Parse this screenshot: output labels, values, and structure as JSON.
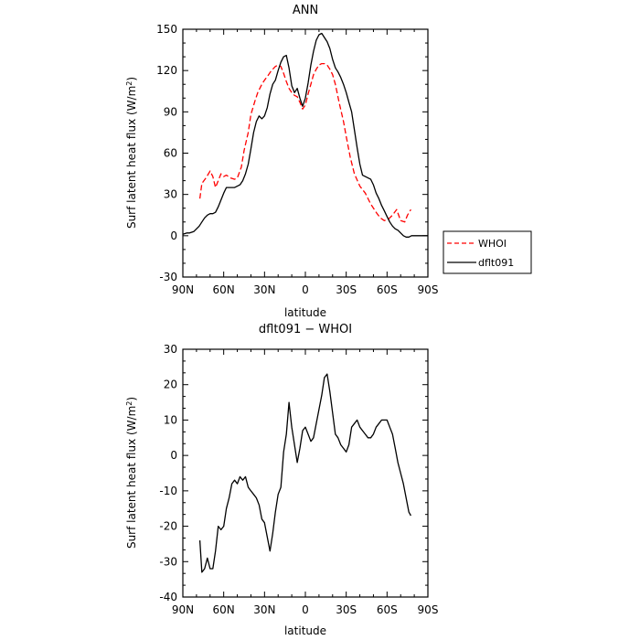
{
  "chart_data": [
    {
      "type": "line",
      "title": "ANN",
      "xlabel": "latitude",
      "ylabel_main": "Surf latent heat flux (W/m",
      "ylabel_sup": "2",
      "ylabel_close": ")",
      "xlim": [
        90,
        -90
      ],
      "ylim": [
        -30,
        150
      ],
      "xticks": [
        90,
        60,
        30,
        0,
        -30,
        -60,
        -90
      ],
      "xtick_labels": [
        "90N",
        "60N",
        "30N",
        "0",
        "30S",
        "60S",
        "90S"
      ],
      "yticks": [
        -30,
        0,
        30,
        60,
        90,
        120,
        150
      ],
      "ytick_labels": [
        "-30",
        "0",
        "30",
        "60",
        "90",
        "120",
        "150"
      ],
      "legend_placement": "right",
      "series": [
        {
          "name": "WHOI",
          "color": "#ff0000",
          "dash": true,
          "x": [
            77.5,
            76,
            73,
            70,
            68,
            66,
            64,
            62,
            60,
            58,
            55,
            52,
            50,
            47,
            45,
            42,
            40,
            37,
            35,
            32,
            30,
            27,
            25,
            22,
            20,
            18,
            16,
            14,
            12,
            10,
            8,
            6,
            4,
            2,
            0,
            -2,
            -4,
            -6,
            -8,
            -10,
            -12,
            -14,
            -16,
            -18,
            -20,
            -22,
            -25,
            -28,
            -30,
            -33,
            -36,
            -40,
            -44,
            -48,
            -52,
            -55,
            -58,
            -61,
            -64,
            -67,
            -70,
            -73,
            -75,
            -77.5
          ],
          "y": [
            27,
            38,
            42,
            47,
            43,
            35,
            40,
            45,
            43,
            44,
            42,
            41,
            42,
            50,
            62,
            75,
            88,
            98,
            104,
            110,
            113,
            117,
            120,
            123,
            124,
            123,
            118,
            112,
            107,
            104,
            102,
            101,
            97,
            92,
            95,
            103,
            110,
            117,
            121,
            124,
            125,
            125,
            124,
            121,
            117,
            110,
            96,
            83,
            72,
            57,
            45,
            36,
            31,
            23,
            17,
            13,
            11,
            12,
            15,
            19,
            11,
            10,
            15,
            19
          ]
        },
        {
          "name": "dflt091",
          "color": "#000000",
          "dash": false,
          "x": [
            90,
            87,
            85,
            82,
            80,
            78,
            76,
            74,
            72,
            70,
            68,
            66,
            64,
            62,
            60,
            58,
            56,
            54,
            52,
            50,
            48,
            46,
            44,
            42,
            40,
            38,
            36,
            34,
            32,
            30,
            28,
            26,
            24,
            22,
            20,
            18,
            16,
            14,
            12,
            10,
            8,
            6,
            4,
            2,
            0,
            -2,
            -4,
            -6,
            -8,
            -10,
            -12,
            -14,
            -16,
            -18,
            -20,
            -22,
            -24,
            -26,
            -28,
            -30,
            -32,
            -34,
            -36,
            -38,
            -40,
            -42,
            -44,
            -46,
            -48,
            -50,
            -52,
            -54,
            -56,
            -58,
            -60,
            -62,
            -64,
            -66,
            -68,
            -70,
            -72,
            -74,
            -76,
            -78,
            -80,
            -82,
            -84,
            -86,
            -88,
            -90
          ],
          "y": [
            1,
            2,
            2,
            3,
            5,
            7,
            10,
            13,
            15,
            16,
            16,
            17,
            21,
            26,
            31,
            35,
            35,
            35,
            35,
            36,
            37,
            40,
            45,
            52,
            63,
            75,
            83,
            87,
            85,
            87,
            93,
            103,
            110,
            113,
            120,
            126,
            130,
            131,
            122,
            109,
            104,
            107,
            100,
            94,
            100,
            111,
            124,
            134,
            142,
            146,
            147,
            144,
            141,
            136,
            128,
            122,
            119,
            115,
            110,
            104,
            97,
            90,
            77,
            64,
            52,
            44,
            43,
            42,
            41,
            37,
            31,
            27,
            22,
            18,
            14,
            10,
            7,
            5,
            4,
            2,
            0,
            -1,
            -1,
            0,
            0,
            0,
            0,
            0,
            0,
            0
          ]
        }
      ]
    },
    {
      "type": "line",
      "title": "dflt091 − WHOI",
      "xlabel": "latitude",
      "ylabel_main": "Surf latent heat flux (W/m",
      "ylabel_sup": "2",
      "ylabel_close": ")",
      "xlim": [
        90,
        -90
      ],
      "ylim": [
        -40,
        30
      ],
      "xticks": [
        90,
        60,
        30,
        0,
        -30,
        -60,
        -90
      ],
      "xtick_labels": [
        "90N",
        "60N",
        "30N",
        "0",
        "30S",
        "60S",
        "90S"
      ],
      "yticks": [
        -40,
        -30,
        -20,
        -10,
        0,
        10,
        20,
        30
      ],
      "ytick_labels": [
        "-40",
        "-30",
        "-20",
        "-10",
        "0",
        "10",
        "20",
        "30"
      ],
      "series": [
        {
          "name": "",
          "color": "#000000",
          "dash": false,
          "x": [
            77.5,
            76,
            74,
            72,
            70,
            68,
            66,
            64,
            62,
            60,
            58,
            56,
            54,
            52,
            50,
            48,
            46,
            44,
            42,
            40,
            38,
            36,
            34,
            32,
            30,
            28,
            26,
            24,
            22,
            20,
            18,
            16,
            14,
            12,
            10,
            8,
            6,
            4,
            2,
            0,
            -2,
            -4,
            -6,
            -8,
            -10,
            -12,
            -14,
            -16,
            -18,
            -20,
            -22,
            -24,
            -26,
            -28,
            -30,
            -32,
            -34,
            -36,
            -38,
            -40,
            -42,
            -44,
            -46,
            -48,
            -50,
            -52,
            -54,
            -56,
            -58,
            -60,
            -62,
            -64,
            -66,
            -68,
            -70,
            -72,
            -74,
            -76,
            -77.5
          ],
          "y": [
            -24,
            -33,
            -32,
            -29,
            -32,
            -32,
            -27,
            -20,
            -21,
            -20,
            -15,
            -12,
            -8,
            -7,
            -8,
            -6,
            -7,
            -6,
            -9,
            -10,
            -11,
            -12,
            -14,
            -18,
            -19,
            -23,
            -27,
            -22,
            -16,
            -11,
            -9,
            1,
            6,
            15,
            8,
            3,
            -2,
            2,
            7,
            8,
            6,
            4,
            5,
            9,
            13,
            17,
            22,
            23,
            18,
            12,
            6,
            5,
            3,
            2,
            1,
            3,
            8,
            9,
            10,
            8,
            7,
            6,
            5,
            5,
            6,
            8,
            9,
            10,
            10,
            10,
            8,
            6,
            2,
            -2,
            -5,
            -8,
            -12,
            -16,
            -17
          ]
        }
      ]
    }
  ]
}
